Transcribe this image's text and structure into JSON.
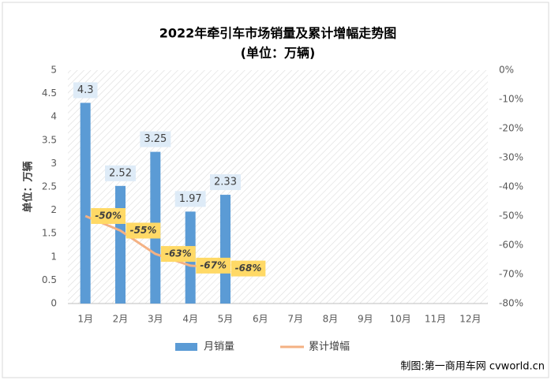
{
  "chart_data": {
    "type": "bar",
    "title": "2022年牵引车市场销量及累计增幅走势图",
    "subtitle": "(单位：万辆)",
    "y_label": "单位：万辆",
    "annotation": "制图:第一商用车网 cvworld.cn",
    "categories": [
      "1月",
      "2月",
      "3月",
      "4月",
      "5月",
      "6月",
      "7月",
      "8月",
      "9月",
      "10月",
      "11月",
      "12月"
    ],
    "series": [
      {
        "name": "月销量",
        "type": "bar",
        "color": "#5b9bd5",
        "values": [
          4.3,
          2.52,
          3.25,
          1.97,
          2.33,
          null,
          null,
          null,
          null,
          null,
          null,
          null
        ]
      },
      {
        "name": "累计增幅",
        "type": "line",
        "axis": "y2",
        "color": "#f4b183",
        "values": [
          -50,
          -55,
          -63,
          -67,
          -68,
          null,
          null,
          null,
          null,
          null,
          null,
          null
        ],
        "value_labels": [
          "-50%",
          "-55%",
          "-63%",
          "-67%",
          "-68%",
          null,
          null,
          null,
          null,
          null,
          null,
          null
        ]
      }
    ],
    "ylim": [
      0,
      5
    ],
    "yticks": [
      0,
      0.5,
      1,
      1.5,
      2,
      2.5,
      3,
      3.5,
      4,
      4.5,
      5
    ],
    "y2lim": [
      -80,
      0
    ],
    "y2ticks": [
      {
        "value": 0,
        "label": "0%"
      },
      {
        "value": -10,
        "label": "-10%"
      },
      {
        "value": -20,
        "label": "-20%"
      },
      {
        "value": -30,
        "label": "-30%"
      },
      {
        "value": -40,
        "label": "-40%"
      },
      {
        "value": -50,
        "label": "-50%"
      },
      {
        "value": -60,
        "label": "-60%"
      },
      {
        "value": -70,
        "label": "-70%"
      },
      {
        "value": -80,
        "label": "-80%"
      }
    ],
    "grid": false,
    "legend": "bottom"
  }
}
